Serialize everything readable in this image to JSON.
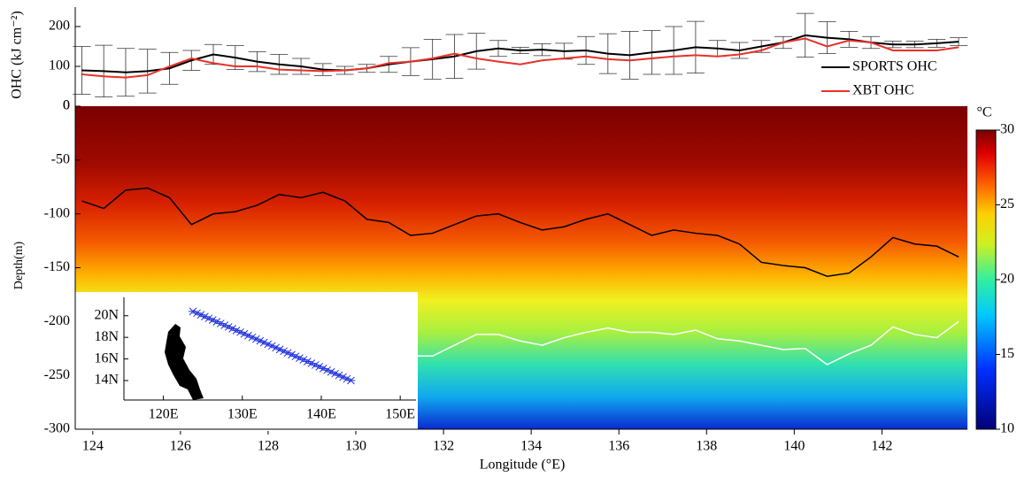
{
  "chart_data": [
    {
      "type": "line",
      "ylabel": "OHC (kJ cm⁻²)",
      "xlim": [
        123.6,
        143.95
      ],
      "ylim": [
        0,
        250
      ],
      "yticks": [
        0,
        100,
        200
      ],
      "legend": "lower right",
      "x": [
        123.75,
        124.25,
        124.75,
        125.25,
        125.75,
        126.25,
        126.75,
        127.25,
        127.75,
        128.25,
        128.75,
        129.25,
        129.75,
        130.25,
        130.75,
        131.25,
        131.75,
        132.25,
        132.75,
        133.25,
        133.75,
        134.25,
        134.75,
        135.25,
        135.75,
        136.25,
        136.75,
        137.25,
        137.75,
        138.25,
        138.75,
        139.25,
        139.75,
        140.25,
        140.75,
        141.25,
        141.75,
        142.25,
        142.75,
        143.25,
        143.75
      ],
      "series": [
        {
          "name": "SPORTS OHC",
          "color": "#000000",
          "values": [
            90,
            88,
            85,
            88,
            95,
            115,
            130,
            122,
            112,
            105,
            100,
            92,
            90,
            95,
            105,
            112,
            118,
            125,
            138,
            145,
            140,
            142,
            138,
            140,
            132,
            128,
            135,
            140,
            148,
            145,
            140,
            150,
            160,
            178,
            172,
            168,
            160,
            155,
            155,
            158,
            162
          ],
          "errors": [
            60,
            65,
            60,
            55,
            40,
            25,
            25,
            30,
            25,
            25,
            20,
            15,
            10,
            10,
            20,
            35,
            50,
            55,
            45,
            20,
            8,
            15,
            20,
            35,
            50,
            60,
            55,
            60,
            65,
            20,
            20,
            15,
            15,
            55,
            40,
            20,
            15,
            8,
            8,
            10,
            10
          ]
        },
        {
          "name": "XBT OHC",
          "color": "#e8312a",
          "values": [
            80,
            75,
            72,
            78,
            100,
            120,
            108,
            100,
            100,
            92,
            90,
            88,
            90,
            95,
            108,
            112,
            120,
            132,
            120,
            112,
            105,
            115,
            120,
            125,
            118,
            115,
            120,
            125,
            128,
            125,
            130,
            140,
            160,
            170,
            150,
            165,
            160,
            140,
            140,
            140,
            148
          ]
        }
      ]
    },
    {
      "type": "contour",
      "xlabel": "Longitude (°E)",
      "ylabel": "Depth(m)",
      "xlim": [
        123.6,
        143.95
      ],
      "ylim": [
        -300,
        0
      ],
      "xticks": [
        124,
        126,
        128,
        130,
        132,
        134,
        136,
        138,
        140,
        142
      ],
      "yticks": [
        -300,
        -250,
        -200,
        -150,
        -100,
        -50,
        0
      ],
      "colorbar": {
        "label": "°C",
        "clim": [
          10,
          30
        ],
        "ticks": [
          10,
          15,
          20,
          25,
          30
        ]
      },
      "x": [
        123.75,
        124.25,
        124.75,
        125.25,
        125.75,
        126.25,
        126.75,
        127.25,
        127.75,
        128.25,
        128.75,
        129.25,
        129.75,
        130.25,
        130.75,
        131.25,
        131.75,
        132.25,
        132.75,
        133.25,
        133.75,
        134.25,
        134.75,
        135.25,
        135.75,
        136.25,
        136.75,
        137.25,
        137.75,
        138.25,
        138.75,
        139.25,
        139.75,
        140.25,
        140.75,
        141.25,
        141.75,
        142.25,
        142.75,
        143.25,
        143.75
      ],
      "series": [
        {
          "color": "#000000",
          "values": [
            -88,
            -95,
            -78,
            -76,
            -85,
            -110,
            -100,
            -98,
            -92,
            -82,
            -85,
            -80,
            -88,
            -105,
            -108,
            -120,
            -118,
            -110,
            -102,
            -100,
            -108,
            -115,
            -112,
            -105,
            -100,
            -110,
            -120,
            -115,
            -118,
            -120,
            -128,
            -145,
            -148,
            -150,
            -158,
            -155,
            -140,
            -122,
            -128,
            -130,
            -140
          ]
        },
        {
          "color": "#ffffff",
          "values": [
            null,
            null,
            null,
            null,
            null,
            null,
            null,
            null,
            null,
            null,
            null,
            null,
            null,
            null,
            null,
            -232,
            -232,
            -222,
            -212,
            -212,
            -218,
            -222,
            -215,
            -210,
            -206,
            -210,
            -210,
            -212,
            -208,
            -216,
            -218,
            -222,
            -226,
            -225,
            -240,
            -230,
            -222,
            -205,
            -212,
            -215,
            -200
          ]
        }
      ]
    },
    {
      "type": "scatter",
      "color": "#2233dd",
      "xlim": [
        115,
        152
      ],
      "ylim": [
        12.2,
        21.7
      ],
      "xticks": [
        {
          "value": 120,
          "label": "120E"
        },
        {
          "value": 130,
          "label": "130E"
        },
        {
          "value": 140,
          "label": "140E"
        },
        {
          "value": 150,
          "label": "150E"
        }
      ],
      "yticks": [
        {
          "value": 14,
          "label": "14N"
        },
        {
          "value": 16,
          "label": "16N"
        },
        {
          "value": 18,
          "label": "18N"
        },
        {
          "value": 20,
          "label": "20N"
        }
      ],
      "x": [
        123.75,
        124.25,
        124.75,
        125.25,
        125.75,
        126.25,
        126.75,
        127.25,
        127.75,
        128.25,
        128.75,
        129.25,
        129.75,
        130.25,
        130.75,
        131.25,
        131.75,
        132.25,
        132.75,
        133.25,
        133.75,
        134.25,
        134.75,
        135.25,
        135.75,
        136.25,
        136.75,
        137.25,
        137.75,
        138.25,
        138.75,
        139.25,
        139.75,
        140.25,
        140.75,
        141.25,
        141.75,
        142.25,
        142.75,
        143.25,
        143.75
      ],
      "values": [
        20.4,
        20.24,
        20.08,
        19.92,
        19.76,
        19.6,
        19.44,
        19.28,
        19.12,
        18.96,
        18.8,
        18.64,
        18.48,
        18.32,
        18.16,
        18.0,
        17.84,
        17.68,
        17.52,
        17.36,
        17.2,
        17.04,
        16.88,
        16.72,
        16.56,
        16.4,
        16.24,
        16.08,
        15.92,
        15.76,
        15.6,
        15.44,
        15.28,
        15.12,
        14.96,
        14.8,
        14.64,
        14.48,
        14.32,
        14.16,
        14.0
      ]
    }
  ]
}
